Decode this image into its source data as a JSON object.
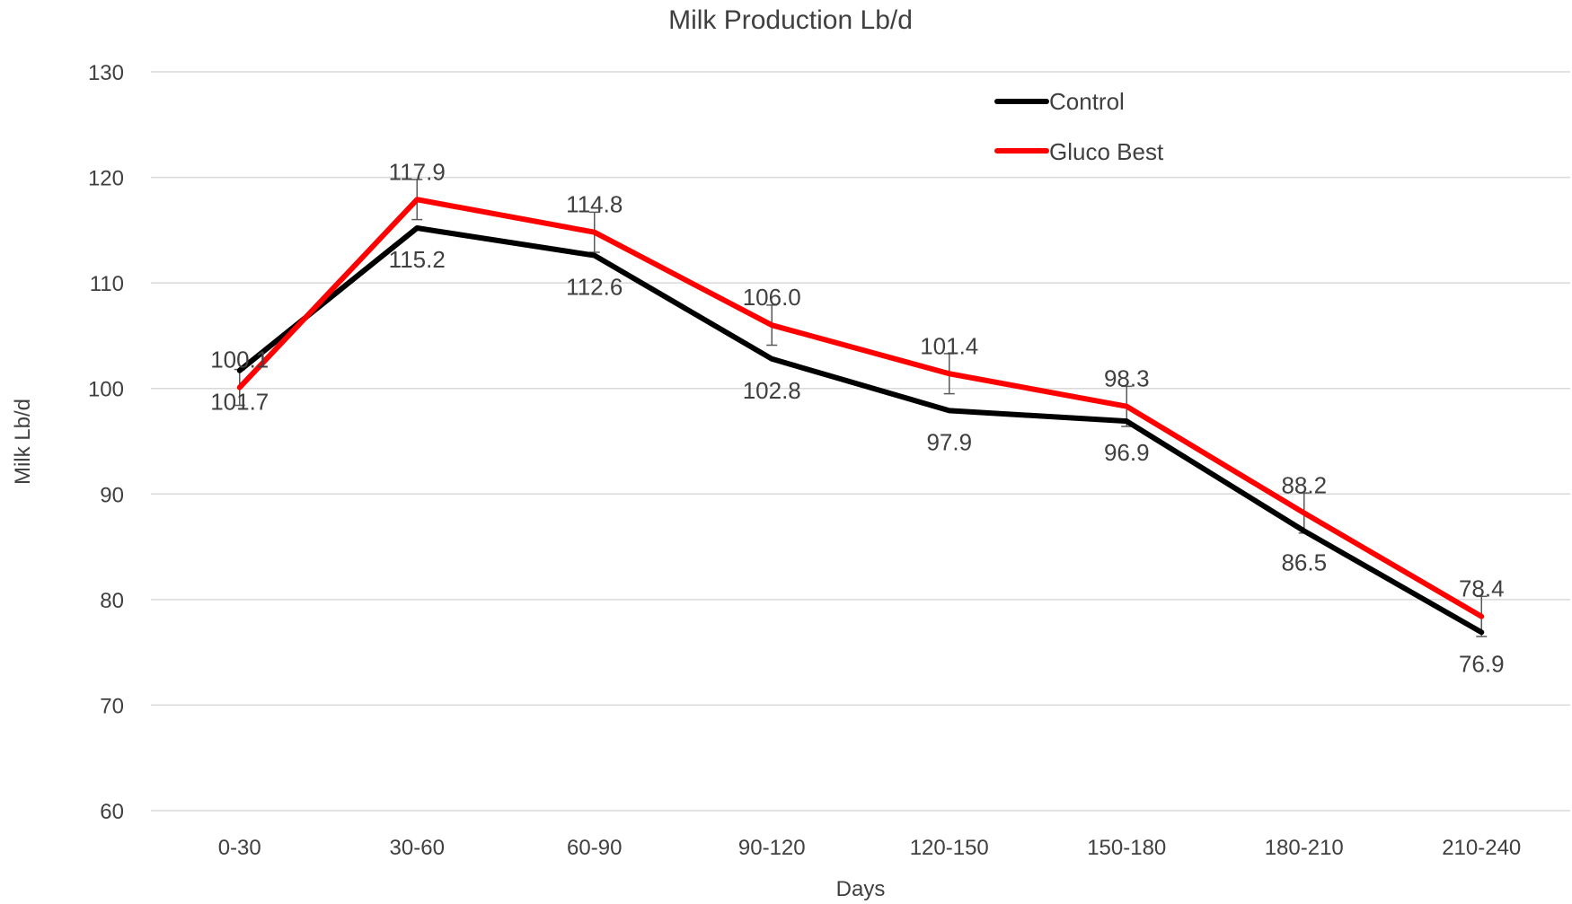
{
  "chart_data": {
    "type": "line",
    "title": "Milk Production Lb/d",
    "xlabel": "Days",
    "ylabel": "Milk Lb/d",
    "categories": [
      "0-30",
      "30-60",
      "60-90",
      "90-120",
      "120-150",
      "150-180",
      "180-210",
      "210-240"
    ],
    "ylim": [
      60,
      130
    ],
    "yticks": [
      60,
      70,
      80,
      90,
      100,
      110,
      120,
      130
    ],
    "grid": true,
    "legend_position": "top-right",
    "series": [
      {
        "name": "Control",
        "color": "#000000",
        "values": [
          101.7,
          115.2,
          112.6,
          102.8,
          97.9,
          96.9,
          86.5,
          76.9
        ],
        "labels": [
          "101.7",
          "115.2",
          "112.6",
          "102.8",
          "97.9",
          "96.9",
          "86.5",
          "76.9"
        ],
        "label_position": "below"
      },
      {
        "name": "Gluco Best",
        "color": "#ff0000",
        "values": [
          100.1,
          117.9,
          114.8,
          106.0,
          101.4,
          98.3,
          88.2,
          78.4
        ],
        "labels": [
          "100.1",
          "117.9",
          "114.8",
          "106.0",
          "101.4",
          "98.3",
          "88.2",
          "78.4"
        ],
        "label_position": "above",
        "error_bars": [
          1.7,
          1.9,
          1.9,
          1.9,
          1.9,
          1.9,
          1.9,
          1.9
        ]
      }
    ]
  }
}
